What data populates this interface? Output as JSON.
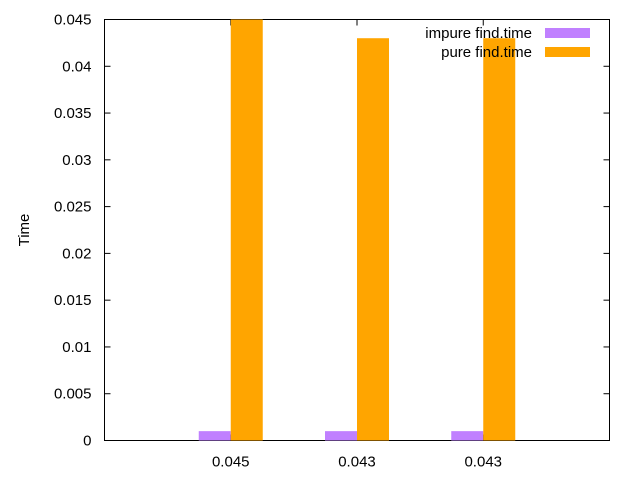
{
  "chart_data": {
    "type": "bar",
    "title": "",
    "xlabel": "",
    "ylabel": "Time",
    "categories": [
      "0.045",
      "0.043",
      "0.043"
    ],
    "series": [
      {
        "name": "impure find.time",
        "values": [
          0.001,
          0.001,
          0.001
        ],
        "color": "#c080ff"
      },
      {
        "name": "pure find.time",
        "values": [
          0.045,
          0.043,
          0.043
        ],
        "color": "#ffa500"
      }
    ],
    "ylim": [
      0,
      0.045
    ],
    "yticks": [
      "0",
      "0.005",
      "0.01",
      "0.015",
      "0.02",
      "0.025",
      "0.03",
      "0.035",
      "0.04",
      "0.045"
    ],
    "grid": false,
    "legend_position": "top-right"
  }
}
